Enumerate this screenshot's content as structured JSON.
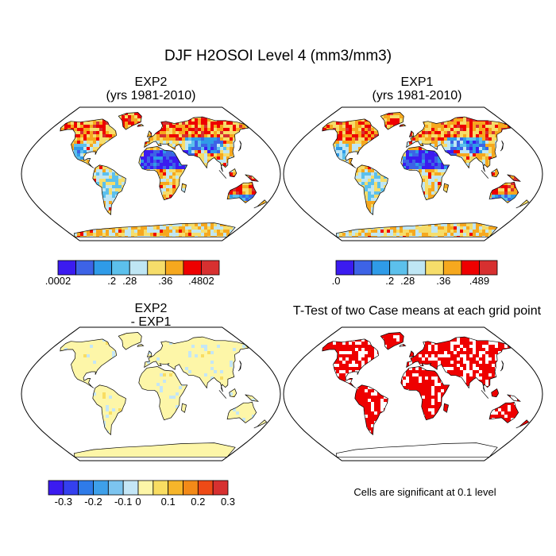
{
  "figure": {
    "title": "DJF H2OSOI Level 4 (mm3/mm3)"
  },
  "panels": {
    "exp2": {
      "title_line1": "EXP2",
      "title_line2": "(yrs 1981-2010)"
    },
    "exp1": {
      "title_line1": "EXP1",
      "title_line2": "(yrs 1981-2010)"
    },
    "diff": {
      "title_line1": "EXP2",
      "title_line2": "- EXP1"
    },
    "ttest": {
      "title": "T-Test of two Case means at each grid point",
      "note": "Cells are significant at 0.1 level"
    }
  },
  "colorbars": {
    "exp2": {
      "colors": [
        "#3b1bf0",
        "#3d63e6",
        "#2f9be8",
        "#5cc0ec",
        "#bfe6f4",
        "#f6dd6a",
        "#f6a81e",
        "#ee0000",
        "#d73030"
      ],
      "labels": [
        ".0002",
        ".2",
        ".28",
        ".36",
        ".4802"
      ],
      "label_slots": [
        0,
        3,
        4,
        6,
        8
      ]
    },
    "exp1": {
      "colors": [
        "#3b1bf0",
        "#3d63e6",
        "#2f9be8",
        "#5cc0ec",
        "#bfe6f4",
        "#f6dd6a",
        "#f6a81e",
        "#ee0000",
        "#d73030"
      ],
      "labels": [
        ".0",
        ".2",
        ".28",
        ".36",
        ".489"
      ],
      "label_slots": [
        0,
        3,
        4,
        6,
        8
      ]
    },
    "diff": {
      "colors": [
        "#3b1bf0",
        "#3440ee",
        "#2f7be8",
        "#3ea0ea",
        "#7cc4ef",
        "#c4e6f6",
        "#fdf6a8",
        "#f9dd62",
        "#f6b52a",
        "#f38a18",
        "#ee4a16",
        "#d73030"
      ],
      "labels": [
        "-0.3",
        "-0.2",
        "-0.1",
        "0",
        "0.1",
        "0.2",
        "0.3"
      ],
      "label_slots": [
        1,
        3,
        5,
        6,
        8,
        10,
        12
      ]
    }
  }
}
